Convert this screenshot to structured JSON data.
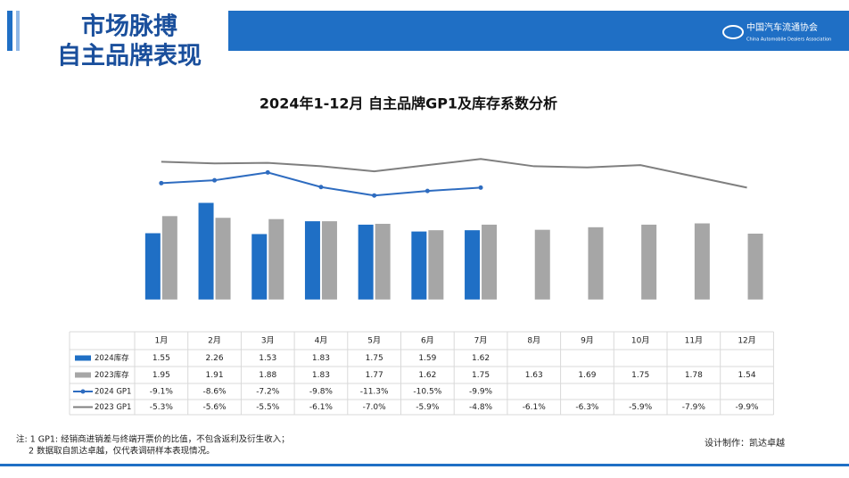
{
  "header": {
    "title_line1": "市场脉搏",
    "title_line2": "自主品牌表现",
    "logo_cn": "中国汽车流通协会",
    "logo_en": "China Automobile Dealers Association"
  },
  "chart_data": {
    "type": "bar",
    "title": "2024年1-12月 自主品牌GP1及库存系数分析",
    "categories": [
      "1月",
      "2月",
      "3月",
      "4月",
      "5月",
      "6月",
      "7月",
      "8月",
      "9月",
      "10月",
      "11月",
      "12月"
    ],
    "ylim": [
      -0.4,
      3
    ],
    "y2lim": [
      -30,
      0
    ],
    "series": [
      {
        "name": "2024库存",
        "type": "bar",
        "color": "#1f6fc5",
        "values": [
          1.55,
          2.26,
          1.53,
          1.83,
          1.75,
          1.59,
          1.62,
          null,
          null,
          null,
          null,
          null
        ]
      },
      {
        "name": "2023库存",
        "type": "bar",
        "color": "#a6a6a6",
        "values": [
          1.95,
          1.91,
          1.88,
          1.83,
          1.77,
          1.62,
          1.75,
          1.63,
          1.69,
          1.75,
          1.78,
          1.54
        ]
      },
      {
        "name": "2024 GP1",
        "type": "line",
        "axis": "y2",
        "marker": true,
        "color": "#2e6cc0",
        "values": [
          -9.1,
          -8.6,
          -7.2,
          -9.8,
          -11.3,
          -10.5,
          -9.9,
          null,
          null,
          null,
          null,
          null
        ],
        "value_labels": [
          "-9.1%",
          "-8.6%",
          "-7.2%",
          "-9.8%",
          "-11.3%",
          "-10.5%",
          "-9.9%",
          null,
          null,
          null,
          null,
          null
        ]
      },
      {
        "name": "2023 GP1",
        "type": "line",
        "axis": "y2",
        "marker": false,
        "color": "#7f7f7f",
        "values": [
          -5.3,
          -5.6,
          -5.5,
          -6.1,
          -7.0,
          -5.9,
          -4.8,
          -6.1,
          -6.3,
          -5.9,
          -7.9,
          -9.9
        ],
        "value_labels": [
          "-5.3%",
          "-5.6%",
          "-5.5%",
          "-6.1%",
          "-7.0%",
          "-5.9%",
          "-4.8%",
          "-6.1%",
          "-6.3%",
          "-5.9%",
          "-7.9%",
          "-9.9%"
        ]
      }
    ]
  },
  "notes": [
    "注: 1 GP1: 经销商进销差与终端开票价的比值，不包含返利及衍生收入；",
    "2 数据取自凯达卓越，仅代表调研样本表现情况。"
  ],
  "credit": "设计制作：凯达卓越"
}
